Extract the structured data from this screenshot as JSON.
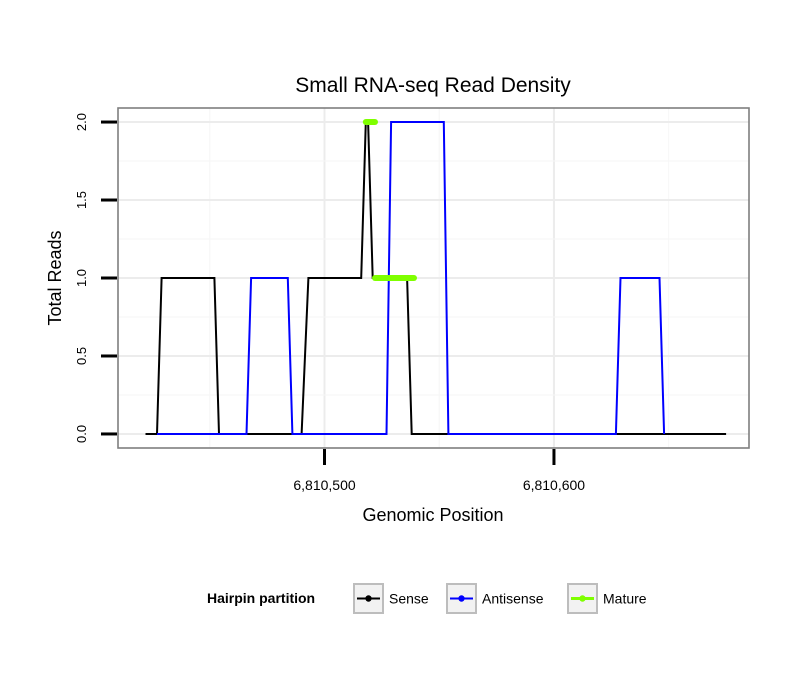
{
  "chart_data": {
    "type": "line",
    "title": "Small RNA-seq Read Density",
    "xlabel": "Genomic Position",
    "ylabel": "Total Reads",
    "xlim": [
      6810410,
      6810685
    ],
    "ylim": [
      -0.09,
      2.09
    ],
    "x_ticks": [
      6810500,
      6810600
    ],
    "x_tick_labels": [
      "6,810,500",
      "6,810,600"
    ],
    "y_ticks": [
      0.0,
      0.5,
      1.0,
      1.5,
      2.0
    ],
    "y_tick_labels": [
      "0.0",
      "0.5",
      "1.0",
      "1.5",
      "2.0"
    ],
    "grid": true,
    "legend_position": "bottom",
    "legend_title": "Hairpin partition",
    "series": [
      {
        "name": "Sense",
        "color": "#000000",
        "x": [
          6810422,
          6810427,
          6810429,
          6810452,
          6810454,
          6810490,
          6810493,
          6810516,
          6810518,
          6810519,
          6810521,
          6810522,
          6810525,
          6810536,
          6810538,
          6810675
        ],
        "y": [
          0,
          0,
          1,
          1,
          0,
          0,
          1,
          1,
          2,
          2,
          1,
          1,
          1,
          1,
          0,
          0
        ]
      },
      {
        "name": "Antisense",
        "color": "#0000ff",
        "x": [
          6810427,
          6810466,
          6810468,
          6810484,
          6810486,
          6810527,
          6810529,
          6810552,
          6810554,
          6810627,
          6810629,
          6810646,
          6810648
        ],
        "y": [
          0,
          0,
          1,
          1,
          0,
          0,
          2,
          2,
          0,
          0,
          1,
          1,
          0
        ]
      },
      {
        "name": "Mature",
        "color": "#7fff00",
        "segments": [
          {
            "x": [
              6810518,
              6810522
            ],
            "y": [
              2,
              2
            ]
          },
          {
            "x": [
              6810522,
              6810539
            ],
            "y": [
              1,
              1
            ]
          }
        ]
      }
    ]
  }
}
